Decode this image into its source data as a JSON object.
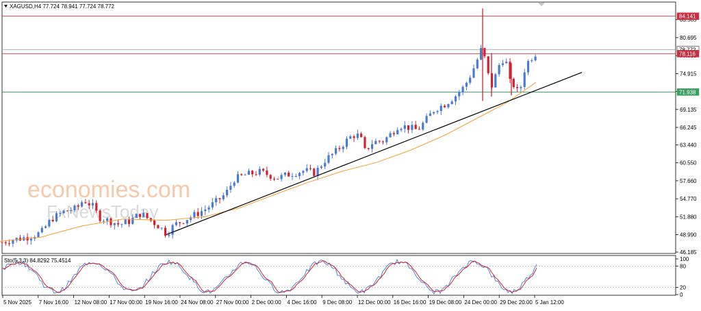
{
  "header": {
    "symbol_line": "XAGUSD,H4  77.724 78.941 77.724 78.772"
  },
  "osc_header": "Sto(5,3,3) 84.8292 75.4514",
  "watermark": {
    "line1": "economies.com",
    "line2": "FxNewsToday"
  },
  "colors": {
    "bull": "#4a7bd4",
    "bear": "#d42030",
    "ma": "#f5a030",
    "trend": "#000000",
    "hline_red": "#c83040",
    "hline_green": "#3aa060",
    "stoch_main": "#4a8ad8",
    "stoch_signal": "#d42030"
  },
  "chart_data": {
    "type": "candlestick",
    "symbol": "XAGUSD",
    "timeframe": "H4",
    "y_ticks": [
      "83.585",
      "80.695",
      "77.805",
      "74.915",
      "72.025",
      "69.135",
      "66.245",
      "63.440",
      "60.550",
      "57.660",
      "54.770",
      "51.880",
      "48.990",
      "46.185"
    ],
    "x_ticks": [
      "5 Nov 2025",
      "7 Nov 16:00",
      "12 Nov 08:00",
      "17 Nov 00:00",
      "19 Nov 16:00",
      "24 Nov 08:00",
      "27 Nov 00:00",
      "2 Dec 00:00",
      "4 Dec 16:00",
      "9 Dec 08:00",
      "12 Dec 00:00",
      "16 Dec 16:00",
      "19 Dec 08:00",
      "24 Dec 00:00",
      "29 Dec 20:00",
      "5 Jan 12:00"
    ],
    "ylim": [
      46.185,
      86.2
    ],
    "price_path": [
      [
        0,
        47.7
      ],
      [
        20,
        48.2
      ],
      [
        40,
        48.6
      ],
      [
        60,
        49.3
      ],
      [
        75,
        51.5
      ],
      [
        95,
        52.8
      ],
      [
        112,
        53.2
      ],
      [
        122,
        54.6
      ],
      [
        135,
        53.6
      ],
      [
        145,
        51.8
      ],
      [
        160,
        51.2
      ],
      [
        175,
        50.6
      ],
      [
        190,
        51.2
      ],
      [
        205,
        52.4
      ],
      [
        220,
        51.3
      ],
      [
        235,
        50.1
      ],
      [
        243,
        49.1
      ],
      [
        255,
        50.6
      ],
      [
        270,
        51.4
      ],
      [
        285,
        52.2
      ],
      [
        300,
        53.1
      ],
      [
        315,
        54.2
      ],
      [
        330,
        55.6
      ],
      [
        342,
        57.9
      ],
      [
        358,
        58.6
      ],
      [
        380,
        59.1
      ],
      [
        405,
        58.1
      ],
      [
        425,
        58.8
      ],
      [
        445,
        59.3
      ],
      [
        460,
        58.9
      ],
      [
        475,
        61.0
      ],
      [
        490,
        62.3
      ],
      [
        505,
        64.0
      ],
      [
        515,
        65.0
      ],
      [
        527,
        64.9
      ],
      [
        530,
        62.1
      ],
      [
        545,
        63.9
      ],
      [
        560,
        64.1
      ],
      [
        572,
        65.3
      ],
      [
        582,
        66.6
      ],
      [
        595,
        66.3
      ],
      [
        610,
        65.8
      ],
      [
        622,
        67.4
      ],
      [
        635,
        69.2
      ],
      [
        650,
        70.0
      ],
      [
        665,
        71.3
      ],
      [
        678,
        72.8
      ],
      [
        688,
        74.8
      ],
      [
        696,
        76.8
      ],
      [
        703,
        78.8
      ],
      [
        709,
        77.1
      ],
      [
        714,
        74.2
      ],
      [
        718,
        72.8
      ],
      [
        724,
        74.6
      ],
      [
        730,
        76.6
      ],
      [
        738,
        77.6
      ],
      [
        743,
        74.6
      ],
      [
        747,
        72.4
      ],
      [
        752,
        73.4
      ],
      [
        758,
        71.2
      ],
      [
        765,
        75.2
      ],
      [
        773,
        77.2
      ],
      [
        780,
        77.8
      ],
      [
        786,
        78.8
      ]
    ],
    "candle_range": [
      3,
      786
    ],
    "candle_spacing": 5.3,
    "spikes": [
      [
        705,
        85.4,
        70.5
      ],
      [
        718,
        78.2,
        71.2
      ],
      [
        747,
        76.6,
        71.4
      ]
    ],
    "ma_path": [
      [
        0,
        47.9
      ],
      [
        60,
        48.6
      ],
      [
        120,
        50.4
      ],
      [
        180,
        51.5
      ],
      [
        243,
        51.3
      ],
      [
        300,
        51.9
      ],
      [
        350,
        53.3
      ],
      [
        400,
        55.4
      ],
      [
        450,
        57.4
      ],
      [
        500,
        59.2
      ],
      [
        550,
        60.6
      ],
      [
        600,
        62.6
      ],
      [
        650,
        65.0
      ],
      [
        700,
        67.9
      ],
      [
        740,
        70.2
      ],
      [
        783,
        73.5
      ]
    ],
    "trendline": [
      [
        243,
        49.0
      ],
      [
        850,
        75.1
      ]
    ],
    "levels": [
      {
        "value": 84.141,
        "label": "84.141",
        "color": "red"
      },
      {
        "value": 78.772,
        "label": "78.772",
        "color": "grey"
      },
      {
        "value": 78.116,
        "label": "78.116",
        "color": "red"
      },
      {
        "value": 71.938,
        "label": "71.938",
        "color": "green"
      }
    ],
    "stochastic": {
      "name": "Sto(5,3,3)",
      "main": 84.8292,
      "signal": 75.4514,
      "levels": [
        20,
        80
      ],
      "ticks": [
        "100",
        "80",
        "20",
        "0"
      ]
    }
  }
}
